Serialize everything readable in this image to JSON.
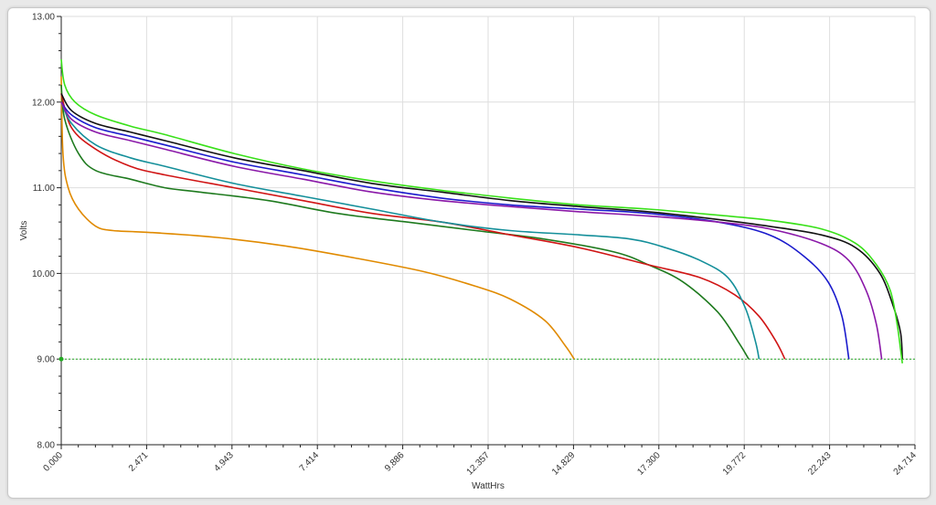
{
  "chart_data": {
    "type": "line",
    "title": "",
    "xlabel": "WattHrs",
    "ylabel": "Volts",
    "xlim": [
      0,
      24.714
    ],
    "ylim": [
      8.0,
      13.0
    ],
    "x_ticks": [
      "0.000",
      "2.471",
      "4.943",
      "7.414",
      "9.886",
      "12.357",
      "14.829",
      "17.300",
      "19.772",
      "22.243",
      "24.714"
    ],
    "y_ticks": [
      "8.00",
      "9.00",
      "10.00",
      "11.00",
      "12.00",
      "13.00"
    ],
    "grid": true,
    "reference_line": {
      "y": 9.0,
      "color": "#22aa22",
      "style": "dotted"
    },
    "series": [
      {
        "color": "#e08a00",
        "points": [
          [
            0,
            12.3
          ],
          [
            0.05,
            11.4
          ],
          [
            0.2,
            11.0
          ],
          [
            0.5,
            10.75
          ],
          [
            1,
            10.55
          ],
          [
            1.5,
            10.5
          ],
          [
            2.5,
            10.48
          ],
          [
            4.5,
            10.42
          ],
          [
            6.5,
            10.32
          ],
          [
            8.5,
            10.18
          ],
          [
            10.5,
            10.02
          ],
          [
            12,
            9.85
          ],
          [
            13,
            9.7
          ],
          [
            14,
            9.45
          ],
          [
            14.6,
            9.15
          ],
          [
            14.85,
            9.0
          ]
        ]
      },
      {
        "color": "#1e7a1e",
        "points": [
          [
            0,
            12.2
          ],
          [
            0.1,
            11.8
          ],
          [
            0.5,
            11.4
          ],
          [
            1,
            11.2
          ],
          [
            2,
            11.1
          ],
          [
            3,
            11.0
          ],
          [
            4,
            10.95
          ],
          [
            6,
            10.85
          ],
          [
            8,
            10.7
          ],
          [
            10,
            10.6
          ],
          [
            12,
            10.5
          ],
          [
            14,
            10.4
          ],
          [
            16,
            10.25
          ],
          [
            17,
            10.1
          ],
          [
            18,
            9.9
          ],
          [
            19,
            9.55
          ],
          [
            19.6,
            9.2
          ],
          [
            19.9,
            9.0
          ]
        ]
      },
      {
        "color": "#d01515",
        "points": [
          [
            0,
            12.1
          ],
          [
            0.3,
            11.7
          ],
          [
            1,
            11.45
          ],
          [
            2,
            11.25
          ],
          [
            3,
            11.15
          ],
          [
            5,
            11.0
          ],
          [
            7,
            10.85
          ],
          [
            9,
            10.7
          ],
          [
            11,
            10.6
          ],
          [
            13,
            10.45
          ],
          [
            15,
            10.3
          ],
          [
            17,
            10.1
          ],
          [
            18.5,
            9.95
          ],
          [
            19.5,
            9.75
          ],
          [
            20.2,
            9.5
          ],
          [
            20.7,
            9.2
          ],
          [
            20.95,
            9.0
          ]
        ]
      },
      {
        "color": "#148f9a",
        "points": [
          [
            0,
            12.0
          ],
          [
            0.3,
            11.75
          ],
          [
            1,
            11.5
          ],
          [
            2,
            11.35
          ],
          [
            3,
            11.25
          ],
          [
            5,
            11.05
          ],
          [
            7,
            10.9
          ],
          [
            9,
            10.75
          ],
          [
            11,
            10.6
          ],
          [
            13,
            10.5
          ],
          [
            15,
            10.45
          ],
          [
            16.5,
            10.4
          ],
          [
            17.5,
            10.3
          ],
          [
            18.5,
            10.15
          ],
          [
            19.3,
            9.95
          ],
          [
            19.8,
            9.6
          ],
          [
            20.1,
            9.2
          ],
          [
            20.2,
            9.0
          ]
        ]
      },
      {
        "color": "#1a1acc",
        "points": [
          [
            0,
            12.0
          ],
          [
            0.3,
            11.85
          ],
          [
            1,
            11.7
          ],
          [
            2,
            11.6
          ],
          [
            3,
            11.5
          ],
          [
            5,
            11.3
          ],
          [
            7,
            11.15
          ],
          [
            9,
            11.0
          ],
          [
            11,
            10.88
          ],
          [
            13,
            10.8
          ],
          [
            15,
            10.75
          ],
          [
            17,
            10.7
          ],
          [
            19,
            10.6
          ],
          [
            20.5,
            10.45
          ],
          [
            21.5,
            10.2
          ],
          [
            22.2,
            9.9
          ],
          [
            22.6,
            9.5
          ],
          [
            22.8,
            9.0
          ]
        ]
      },
      {
        "color": "#8a18a8",
        "points": [
          [
            0,
            12.0
          ],
          [
            0.3,
            11.8
          ],
          [
            1,
            11.65
          ],
          [
            2,
            11.55
          ],
          [
            3,
            11.45
          ],
          [
            5,
            11.25
          ],
          [
            7,
            11.1
          ],
          [
            9,
            10.95
          ],
          [
            11,
            10.85
          ],
          [
            13,
            10.78
          ],
          [
            15,
            10.72
          ],
          [
            17,
            10.67
          ],
          [
            19,
            10.6
          ],
          [
            20.5,
            10.52
          ],
          [
            22,
            10.35
          ],
          [
            22.8,
            10.15
          ],
          [
            23.3,
            9.8
          ],
          [
            23.6,
            9.4
          ],
          [
            23.75,
            9.0
          ]
        ]
      },
      {
        "color": "#111111",
        "points": [
          [
            0,
            12.1
          ],
          [
            0.3,
            11.9
          ],
          [
            1,
            11.75
          ],
          [
            2,
            11.65
          ],
          [
            3,
            11.55
          ],
          [
            5,
            11.35
          ],
          [
            7,
            11.2
          ],
          [
            9,
            11.05
          ],
          [
            11,
            10.95
          ],
          [
            13,
            10.85
          ],
          [
            15,
            10.78
          ],
          [
            17,
            10.72
          ],
          [
            19,
            10.63
          ],
          [
            20.5,
            10.55
          ],
          [
            22,
            10.45
          ],
          [
            23,
            10.3
          ],
          [
            23.7,
            10.0
          ],
          [
            24.1,
            9.6
          ],
          [
            24.3,
            9.3
          ],
          [
            24.35,
            9.0
          ]
        ]
      },
      {
        "color": "#38e018",
        "points": [
          [
            0,
            12.5
          ],
          [
            0.1,
            12.2
          ],
          [
            0.4,
            12.0
          ],
          [
            1,
            11.85
          ],
          [
            2,
            11.72
          ],
          [
            3,
            11.62
          ],
          [
            5,
            11.4
          ],
          [
            7,
            11.22
          ],
          [
            9,
            11.08
          ],
          [
            11,
            10.97
          ],
          [
            13,
            10.88
          ],
          [
            15,
            10.8
          ],
          [
            17,
            10.75
          ],
          [
            19,
            10.68
          ],
          [
            20.5,
            10.62
          ],
          [
            22,
            10.52
          ],
          [
            23,
            10.35
          ],
          [
            23.6,
            10.1
          ],
          [
            24.0,
            9.8
          ],
          [
            24.2,
            9.4
          ],
          [
            24.3,
            9.1
          ],
          [
            24.35,
            8.95
          ]
        ]
      }
    ]
  }
}
